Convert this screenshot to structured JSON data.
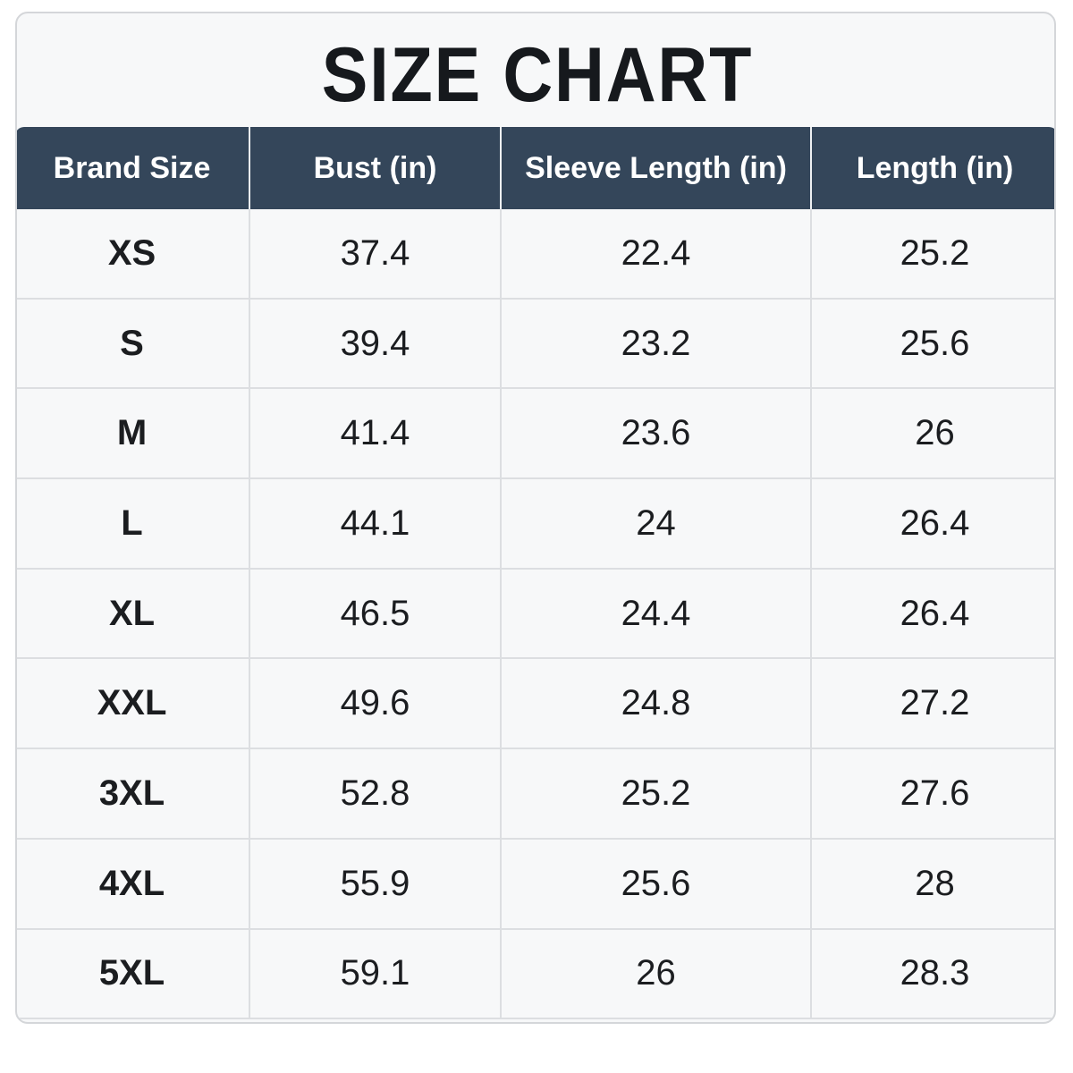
{
  "header": {
    "title": "SIZE CHART"
  },
  "table": {
    "columns": [
      "Brand Size",
      "Bust (in)",
      "Sleeve Length (in)",
      "Length (in)"
    ],
    "rows": [
      [
        "XS",
        37.4,
        22.4,
        25.2
      ],
      [
        "S",
        39.4,
        23.2,
        25.6
      ],
      [
        "M",
        41.4,
        23.6,
        26
      ],
      [
        "L",
        44.1,
        24,
        26.4
      ],
      [
        "XL",
        46.5,
        24.4,
        26.4
      ],
      [
        "XXL",
        49.6,
        24.8,
        27.2
      ],
      [
        "3XL",
        52.8,
        25.2,
        27.6
      ],
      [
        "4XL",
        55.9,
        25.6,
        28
      ],
      [
        "5XL",
        59.1,
        26,
        28.3
      ]
    ]
  }
}
